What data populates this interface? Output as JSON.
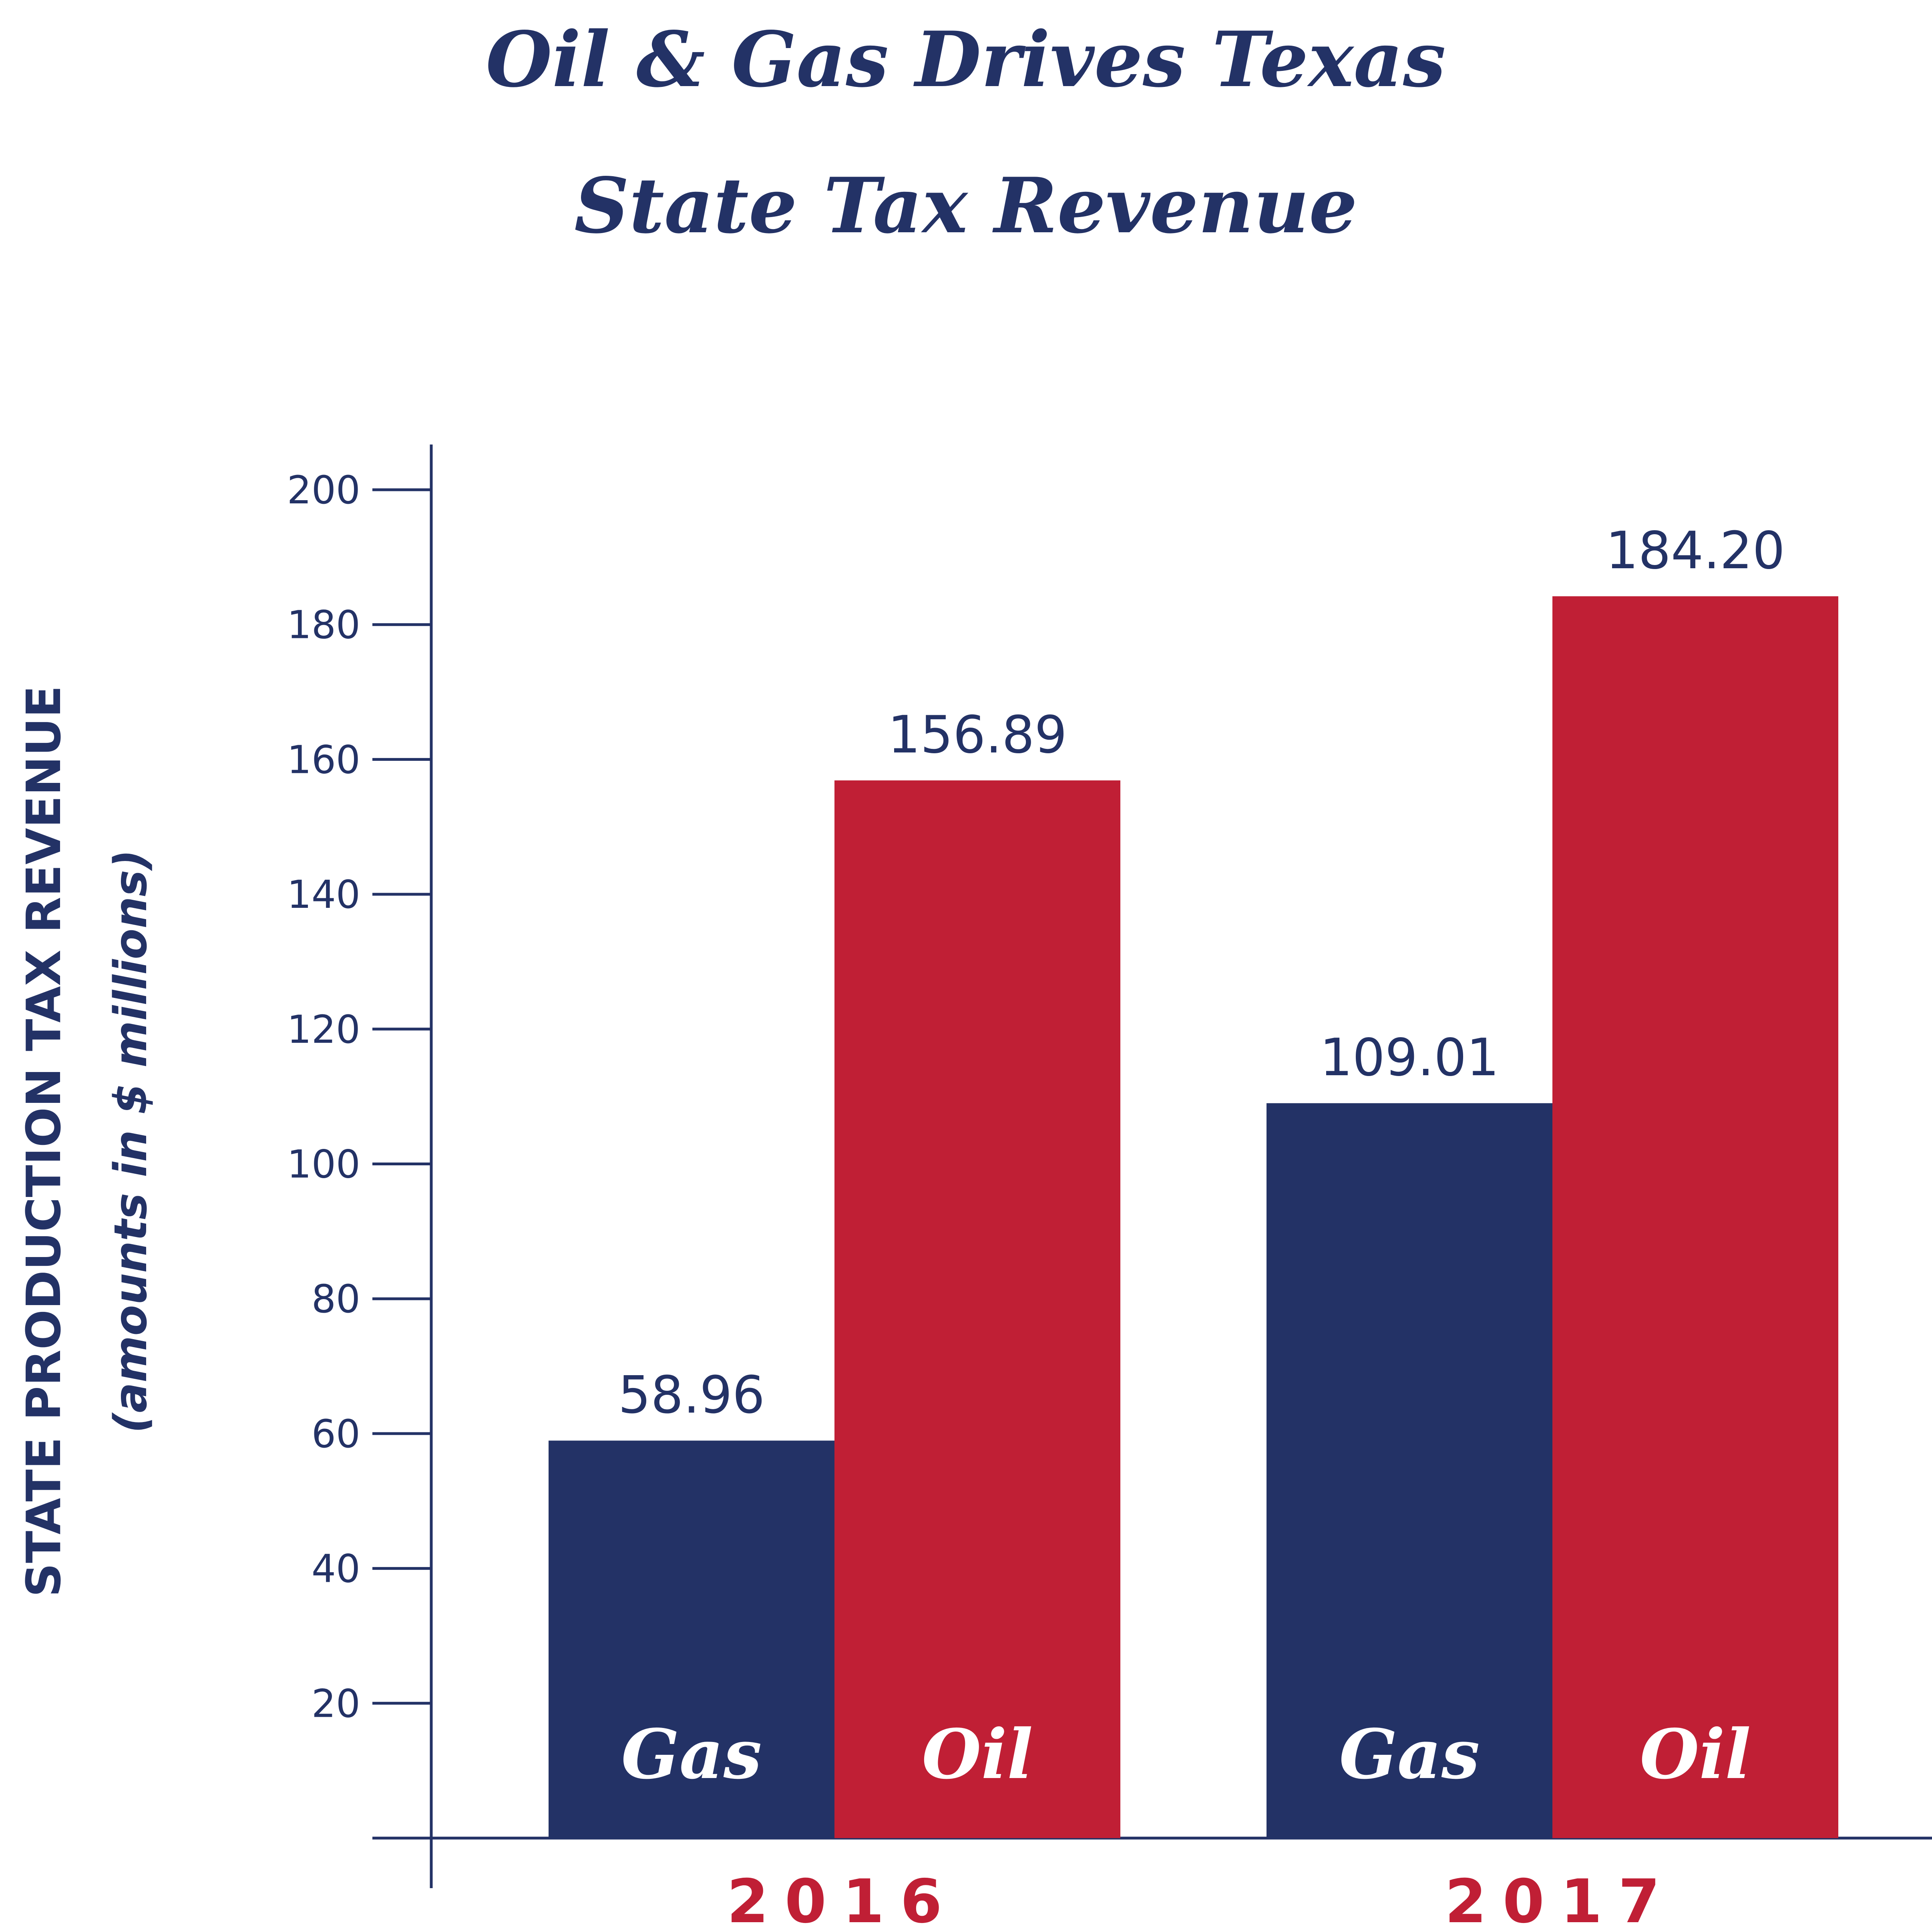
{
  "chart_data": {
    "type": "bar",
    "title_lines": [
      "Oil & Gas Drives Texas",
      "State Tax Revenue"
    ],
    "ylabel": "STATE PRODUCTION TAX REVENUE",
    "ylabel_sub": "(amounts in $ millions)",
    "categories": [
      "2016",
      "2017"
    ],
    "series": [
      {
        "name": "Gas",
        "values": [
          58.96,
          109.01
        ],
        "value_labels": [
          "58.96",
          "109.01"
        ],
        "color": "#233266"
      },
      {
        "name": "Oil",
        "values": [
          156.89,
          184.2
        ],
        "value_labels": [
          "156.89",
          "184.20"
        ],
        "color": "#c01f35"
      }
    ],
    "yticks": [
      20,
      40,
      60,
      80,
      100,
      120,
      140,
      160,
      180,
      200
    ],
    "ylim": [
      0,
      200
    ],
    "grid": false,
    "legend": "labels inside bars",
    "colors": {
      "axis": "#233266",
      "category_label": "#c01f35"
    }
  }
}
